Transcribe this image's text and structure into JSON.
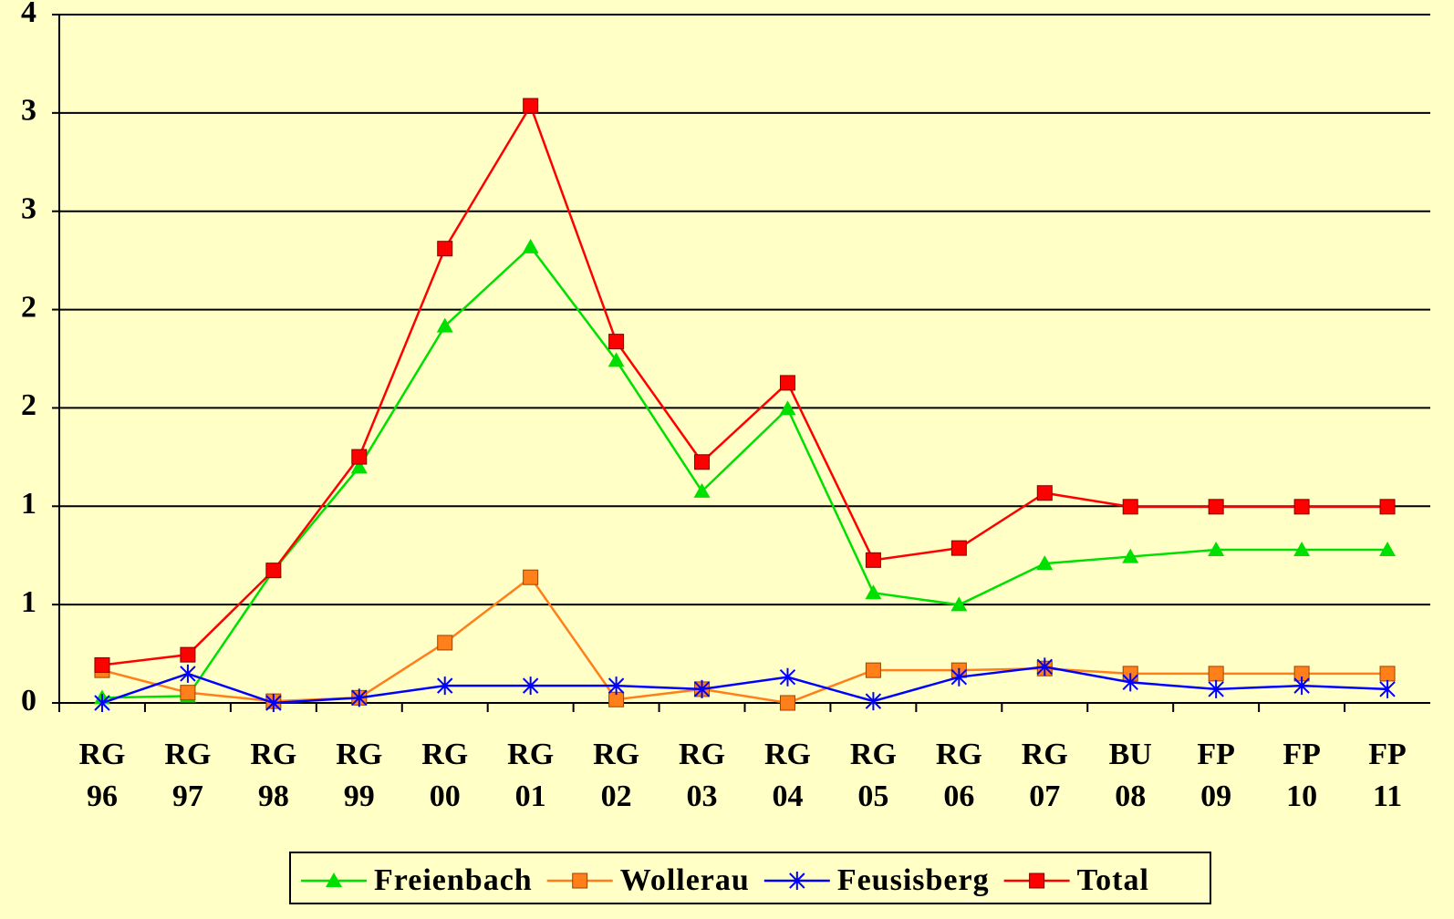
{
  "chart_data": {
    "type": "line",
    "categories": [
      [
        "RG",
        "96"
      ],
      [
        "RG",
        "97"
      ],
      [
        "RG",
        "98"
      ],
      [
        "RG",
        "99"
      ],
      [
        "RG",
        "00"
      ],
      [
        "RG",
        "01"
      ],
      [
        "RG",
        "02"
      ],
      [
        "RG",
        "03"
      ],
      [
        "RG",
        "04"
      ],
      [
        "RG",
        "05"
      ],
      [
        "RG",
        "06"
      ],
      [
        "RG",
        "07"
      ],
      [
        "BU",
        "08"
      ],
      [
        "FP",
        "09"
      ],
      [
        "FP",
        "10"
      ],
      [
        "FP",
        "11"
      ]
    ],
    "series": [
      {
        "name": "Freienbach",
        "color": "#00e000",
        "marker": "triangle",
        "values": [
          0.03,
          0.04,
          0.77,
          1.37,
          2.19,
          2.65,
          1.99,
          1.23,
          1.71,
          0.64,
          0.57,
          0.81,
          0.85,
          0.89,
          0.89,
          0.89
        ]
      },
      {
        "name": "Wollerau",
        "color": "#ff7f1a",
        "marker": "square",
        "values": [
          0.19,
          0.06,
          0.01,
          0.03,
          0.35,
          0.73,
          0.02,
          0.08,
          0,
          0.19,
          0.19,
          0.2,
          0.17,
          0.17,
          0.17,
          0.17
        ]
      },
      {
        "name": "Feusisberg",
        "color": "#0000ff",
        "marker": "star",
        "values": [
          0,
          0.17,
          0,
          0.03,
          0.1,
          0.1,
          0.1,
          0.08,
          0.15,
          0.01,
          0.15,
          0.21,
          0.12,
          0.08,
          0.1,
          0.08
        ]
      },
      {
        "name": "Total",
        "color": "#ff0000",
        "marker": "square",
        "values": [
          0.22,
          0.28,
          0.77,
          1.43,
          2.64,
          3.47,
          2.1,
          1.4,
          1.86,
          0.83,
          0.9,
          1.22,
          1.14,
          1.14,
          1.14,
          1.14
        ]
      }
    ],
    "ylim": [
      0,
      4
    ],
    "yticks": [
      0,
      {
        "value": 0.5714,
        "label": "1"
      },
      {
        "value": 1.1429,
        "label": "1"
      },
      {
        "value": 1.7143,
        "label": "2"
      },
      {
        "value": 2.2857,
        "label": "2"
      },
      {
        "value": 2.8571,
        "label": "3"
      },
      {
        "value": 3.4286,
        "label": "3"
      },
      4
    ],
    "grid": true,
    "legend": "bottom"
  }
}
